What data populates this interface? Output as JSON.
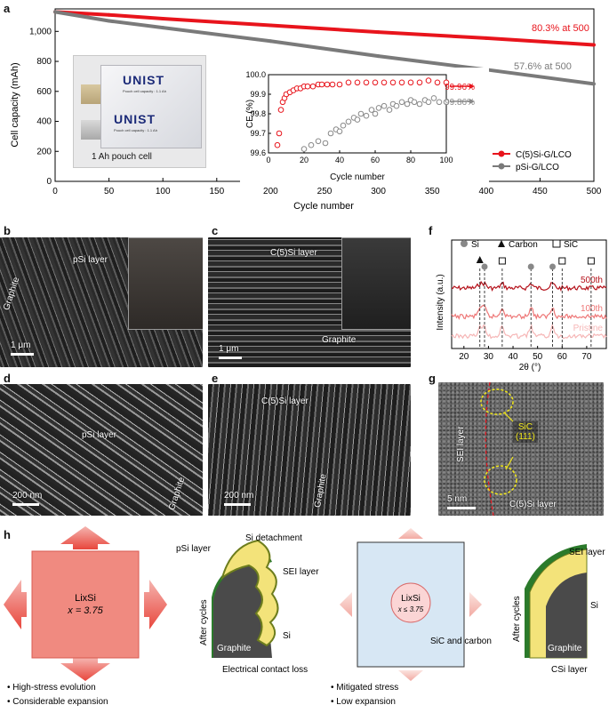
{
  "panel_letters": {
    "a": "a",
    "b": "b",
    "c": "c",
    "d": "d",
    "e": "e",
    "f": "f",
    "g": "g",
    "h": "h"
  },
  "chart_data": [
    {
      "type": "line",
      "title": "",
      "xlabel": "Cycle number",
      "ylabel": "Cell capacity (mAh)",
      "xlim": [
        0,
        500
      ],
      "ylim": [
        0,
        1150
      ],
      "xticks": [
        0,
        50,
        100,
        150,
        200,
        250,
        300,
        350,
        400,
        450,
        500
      ],
      "yticks": [
        0,
        200,
        400,
        600,
        800,
        1000
      ],
      "ytick_labels": [
        "0",
        "200",
        "400",
        "600",
        "800",
        "1,000"
      ],
      "series": [
        {
          "name": "C(5)Si-G/LCO",
          "color": "#e8141c",
          "x": [
            0,
            50,
            100,
            200,
            300,
            400,
            500
          ],
          "values": [
            1130,
            1110,
            1085,
            1040,
            995,
            955,
            910
          ]
        },
        {
          "name": "pSi-G/LCO",
          "color": "#7a7a7a",
          "x": [
            0,
            50,
            100,
            200,
            300,
            400,
            500
          ],
          "values": [
            1130,
            1070,
            1025,
            935,
            835,
            745,
            650
          ]
        }
      ],
      "annotations": [
        "80.3% at 500",
        "57.6% at 500"
      ],
      "inset_photo_label": "1 Ah pouch cell",
      "pouch_brand": "UNIST",
      "pouch_caption": "Pouch cell capacity : 1.1 Ah"
    },
    {
      "type": "scatter",
      "title": "",
      "xlabel": "Cycle number",
      "ylabel": "CE (%)",
      "xlim": [
        0,
        100
      ],
      "ylim": [
        99.6,
        100.0
      ],
      "xticks": [
        0,
        20,
        40,
        60,
        80,
        100
      ],
      "yticks": [
        "99.6",
        "99.7",
        "99.8",
        "99.9",
        "100.0"
      ],
      "series": [
        {
          "name": "C(5)Si-G/LCO",
          "color": "#e8141c",
          "final_label": "99.96%",
          "x": [
            5,
            6,
            7,
            8,
            9,
            10,
            12,
            14,
            16,
            18,
            20,
            22,
            25,
            28,
            30,
            33,
            36,
            40,
            45,
            50,
            55,
            60,
            65,
            70,
            75,
            80,
            85,
            90,
            95,
            100
          ],
          "values": [
            99.64,
            99.7,
            99.82,
            99.86,
            99.88,
            99.9,
            99.91,
            99.92,
            99.93,
            99.93,
            99.94,
            99.94,
            99.94,
            99.95,
            99.95,
            99.95,
            99.95,
            99.95,
            99.96,
            99.96,
            99.96,
            99.96,
            99.96,
            99.96,
            99.96,
            99.96,
            99.96,
            99.97,
            99.96,
            99.96
          ]
        },
        {
          "name": "pSi-G/LCO",
          "color": "#888888",
          "final_label": "99.86%",
          "x": [
            20,
            24,
            28,
            32,
            35,
            38,
            40,
            42,
            45,
            48,
            50,
            52,
            55,
            58,
            60,
            62,
            65,
            68,
            70,
            72,
            75,
            78,
            80,
            82,
            85,
            88,
            90,
            93,
            96,
            100
          ],
          "values": [
            99.62,
            99.64,
            99.66,
            99.65,
            99.7,
            99.72,
            99.71,
            99.74,
            99.76,
            99.78,
            99.77,
            99.8,
            99.79,
            99.82,
            99.8,
            99.83,
            99.84,
            99.82,
            99.85,
            99.84,
            99.86,
            99.85,
            99.87,
            99.86,
            99.85,
            99.87,
            99.86,
            99.88,
            99.86,
            99.86
          ]
        }
      ]
    },
    {
      "type": "line",
      "title": "",
      "xlabel": "2θ (°)",
      "ylabel": "Intensity (a.u.)",
      "xlim": [
        15,
        78
      ],
      "xticks": [
        20,
        30,
        40,
        50,
        60,
        70
      ],
      "legend": [
        "Si",
        "Carbon",
        "SiC"
      ],
      "series": [
        {
          "name": "500th",
          "color": "#b5121b"
        },
        {
          "name": "100th",
          "color": "#ee7777"
        },
        {
          "name": "Pristine",
          "color": "#f6b6b6"
        }
      ]
    }
  ],
  "sem_labels": {
    "b_layer": "pSi layer",
    "b_graphite": "Graphite",
    "b_scale": "1 μm",
    "c_layer": "C(5)Si layer",
    "c_graphite": "Graphite",
    "c_scale": "1 μm",
    "d_layer": "pSi layer",
    "d_graphite": "Graphite",
    "d_scale": "200 nm",
    "e_layer": "C(5)Si layer",
    "e_graphite": "Graphite",
    "e_scale": "200 nm",
    "g_sei": "SEI layer",
    "g_sic": "SiC",
    "g_plane": "(111)",
    "g_scale": "5 nm",
    "g_csi": "C(5)Si layer"
  },
  "schematic": {
    "lixsi_left": "LixSi",
    "x_left": "x = 3.75",
    "psi_layer": "pSi layer",
    "si_detachment": "Si detachment",
    "sei_layer": "SEI layer",
    "si": "Si",
    "graphite": "Graphite",
    "after_cycles": "After cycles",
    "contact_loss": "Electrical contact loss",
    "bullets_left": [
      "High-stress evolution",
      "Considerable expansion"
    ],
    "lixsi_right": "LixSi",
    "x_right": "x ≤ 3.75",
    "sic_carbon": "SiC and carbon",
    "sei_layer_right": "SEI layer",
    "si_right": "Si",
    "graphite_right": "Graphite",
    "after_cycles_right": "After cycles",
    "csi_layer": "CSi layer",
    "bullets_right": [
      "Mitigated stress",
      "Low expansion"
    ]
  }
}
